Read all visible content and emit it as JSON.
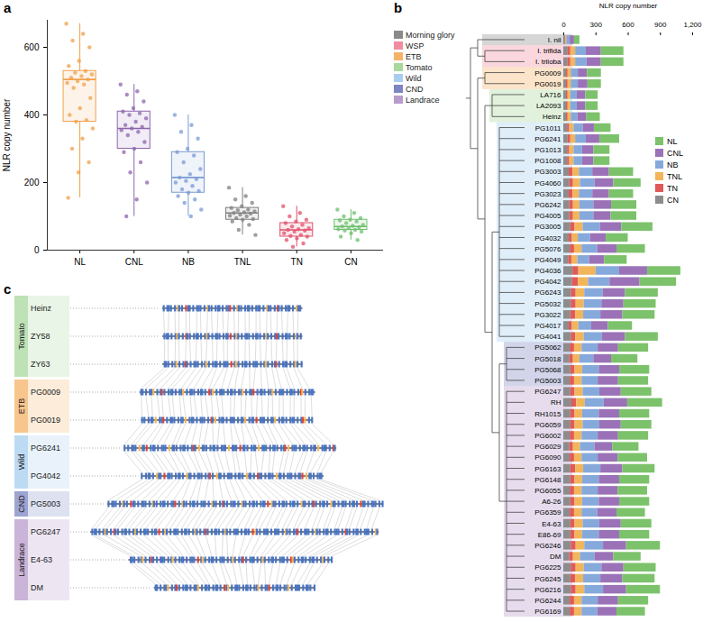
{
  "chart_data": [
    {
      "panel_label": "a",
      "type": "box",
      "categories": [
        "NL",
        "CNL",
        "NB",
        "TNL",
        "TN",
        "CN"
      ],
      "colors": [
        "#f0a04b",
        "#8d66ad",
        "#7a9ad4",
        "#7f7f7f",
        "#e0506b",
        "#6cbf6c"
      ],
      "box": {
        "min": [
          155,
          100,
          100,
          45,
          10,
          30
        ],
        "q1": [
          380,
          300,
          170,
          90,
          40,
          60
        ],
        "median": [
          505,
          360,
          215,
          110,
          60,
          70
        ],
        "q3": [
          530,
          410,
          290,
          125,
          80,
          90
        ],
        "max": [
          670,
          490,
          400,
          185,
          130,
          120
        ]
      },
      "points": [
        [
          670,
          640,
          620,
          600,
          560,
          545,
          530,
          525,
          520,
          515,
          510,
          505,
          500,
          495,
          490,
          480,
          450,
          420,
          400,
          385,
          380,
          360,
          330,
          300,
          260,
          230,
          155
        ],
        [
          490,
          470,
          460,
          440,
          420,
          410,
          405,
          400,
          390,
          380,
          370,
          365,
          360,
          355,
          350,
          340,
          320,
          300,
          290,
          260,
          230,
          200,
          150,
          100
        ],
        [
          400,
          370,
          350,
          330,
          300,
          290,
          280,
          260,
          240,
          225,
          215,
          210,
          205,
          200,
          190,
          180,
          175,
          170,
          160,
          150,
          140,
          120,
          100
        ],
        [
          185,
          160,
          150,
          140,
          130,
          125,
          120,
          118,
          115,
          112,
          110,
          108,
          105,
          102,
          100,
          95,
          92,
          90,
          85,
          75,
          60,
          45
        ],
        [
          130,
          110,
          100,
          90,
          85,
          80,
          75,
          70,
          65,
          62,
          60,
          58,
          55,
          50,
          45,
          42,
          40,
          35,
          30,
          20,
          10
        ],
        [
          120,
          110,
          100,
          95,
          90,
          88,
          85,
          80,
          75,
          72,
          70,
          68,
          65,
          62,
          60,
          58,
          55,
          50,
          40,
          30
        ]
      ],
      "ylabel": "NLR copy number",
      "ylim": [
        0,
        680
      ],
      "yticks": [
        0,
        200,
        400,
        600
      ]
    },
    {
      "panel_label": "b",
      "type": "bar",
      "orientation": "horizontal",
      "stacked": true,
      "legend": "right",
      "categories": [
        "I. nil",
        "I. trifida",
        "I. triloba",
        "PG0009",
        "PG0019",
        "LA716",
        "LA2093",
        "Heinz",
        "PG1011",
        "PG6241",
        "PG1013",
        "PG1008",
        "PG3003",
        "PG4060",
        "PG3023",
        "PG6242",
        "PG4005",
        "PG3005",
        "PG4032",
        "PG5076",
        "PG4049",
        "PG4036",
        "PG4042",
        "PG6243",
        "PG5032",
        "PG3022",
        "PG4017",
        "PG4041",
        "PG5062",
        "PG5018",
        "PG5068",
        "PG5003",
        "PG6247",
        "RH",
        "RH1015",
        "PG6059",
        "PG6002",
        "PG6029",
        "PG6090",
        "PG6163",
        "PG6148",
        "PG6055",
        "A6-26",
        "PG6359",
        "E4-63",
        "E86-69",
        "PG6246",
        "DM",
        "PG6225",
        "PG6245",
        "PG6216",
        "PG6244",
        "PG6169"
      ],
      "series": [
        {
          "name": "CN",
          "color": "#8c8c8c",
          "values": [
            15,
            40,
            40,
            25,
            25,
            25,
            25,
            25,
            35,
            40,
            35,
            35,
            50,
            55,
            50,
            55,
            55,
            65,
            50,
            60,
            45,
            85,
            80,
            70,
            70,
            65,
            50,
            70,
            60,
            55,
            65,
            60,
            65,
            75,
            65,
            65,
            60,
            55,
            60,
            65,
            65,
            60,
            65,
            60,
            65,
            65,
            70,
            55,
            70,
            65,
            70,
            60,
            60
          ]
        },
        {
          "name": "TN",
          "color": "#e05a5a",
          "values": [
            5,
            25,
            25,
            15,
            15,
            15,
            15,
            15,
            20,
            25,
            20,
            20,
            35,
            35,
            35,
            35,
            35,
            40,
            30,
            40,
            30,
            55,
            55,
            45,
            45,
            45,
            30,
            40,
            40,
            35,
            40,
            40,
            40,
            45,
            40,
            40,
            40,
            35,
            40,
            45,
            40,
            40,
            40,
            40,
            40,
            40,
            45,
            35,
            45,
            45,
            45,
            40,
            40
          ]
        },
        {
          "name": "TNL",
          "color": "#f2b55a",
          "values": [
            10,
            45,
            45,
            30,
            30,
            25,
            25,
            30,
            40,
            45,
            40,
            40,
            60,
            65,
            60,
            60,
            60,
            75,
            55,
            70,
            55,
            160,
            95,
            80,
            75,
            75,
            60,
            80,
            70,
            60,
            70,
            70,
            75,
            80,
            70,
            75,
            70,
            65,
            70,
            75,
            70,
            70,
            70,
            70,
            75,
            70,
            80,
            65,
            75,
            75,
            80,
            70,
            70
          ]
        },
        {
          "name": "NB",
          "color": "#86a9dc",
          "values": [
            30,
            100,
            105,
            65,
            65,
            60,
            60,
            60,
            85,
            100,
            80,
            80,
            125,
            135,
            125,
            130,
            130,
            160,
            115,
            145,
            110,
            220,
            200,
            170,
            165,
            160,
            120,
            170,
            150,
            130,
            155,
            150,
            155,
            175,
            155,
            155,
            150,
            135,
            150,
            160,
            155,
            150,
            155,
            145,
            155,
            155,
            175,
            135,
            165,
            160,
            175,
            150,
            145
          ]
        },
        {
          "name": "CNL",
          "color": "#9b72b8",
          "values": [
            40,
            140,
            135,
            85,
            90,
            80,
            80,
            85,
            105,
            125,
            105,
            105,
            155,
            175,
            155,
            165,
            160,
            200,
            145,
            180,
            140,
            260,
            280,
            210,
            205,
            205,
            155,
            215,
            190,
            165,
            190,
            190,
            200,
            220,
            190,
            200,
            190,
            165,
            185,
            205,
            190,
            185,
            190,
            180,
            200,
            190,
            215,
            175,
            205,
            205,
            215,
            190,
            180
          ]
        },
        {
          "name": "NL",
          "color": "#7cc26b",
          "values": [
            50,
            210,
            210,
            130,
            125,
            115,
            115,
            125,
            155,
            185,
            150,
            150,
            225,
            255,
            225,
            235,
            240,
            290,
            205,
            265,
            210,
            310,
            340,
            305,
            300,
            300,
            225,
            305,
            280,
            245,
            280,
            280,
            285,
            325,
            280,
            285,
            280,
            245,
            275,
            300,
            280,
            275,
            280,
            265,
            285,
            280,
            315,
            255,
            300,
            300,
            315,
            280,
            265
          ]
        }
      ],
      "xlabel": "NLR copy number",
      "xlim": [
        0,
        1200
      ],
      "xticks": [
        0,
        300,
        600,
        900,
        {
          "value": 1200,
          "label": "1,200"
        }
      ],
      "groups": [
        {
          "name": "Morning glory",
          "color": "#8a8a8a",
          "members": [
            "I. nil"
          ]
        },
        {
          "name": "WSP",
          "color": "#f28ca0",
          "members": [
            "I. trifida",
            "I. triloba"
          ]
        },
        {
          "name": "ETB",
          "color": "#f5b266",
          "members": [
            "PG0009",
            "PG0019"
          ]
        },
        {
          "name": "Tomato",
          "color": "#a8d89c",
          "members": [
            "LA716",
            "LA2093",
            "Heinz"
          ]
        },
        {
          "name": "Wild",
          "color": "#a7cdef",
          "members": [
            "PG1011",
            "PG6241",
            "PG1013",
            "PG1008",
            "PG3003",
            "PG4060",
            "PG3023",
            "PG6242",
            "PG4005",
            "PG3005",
            "PG4032",
            "PG5076",
            "PG4049",
            "PG4036",
            "PG4042",
            "PG6243",
            "PG5032",
            "PG3022",
            "PG4017",
            "PG4041"
          ]
        },
        {
          "name": "CND",
          "color": "#7d86c2",
          "members": [
            "PG5062",
            "PG5018",
            "PG5068",
            "PG5003"
          ]
        },
        {
          "name": "Landrace",
          "color": "#b89ccc",
          "members": [
            "PG6247",
            "RH",
            "RH1015",
            "PG6059",
            "PG6002",
            "PG6029",
            "PG6090",
            "PG6163",
            "PG6148",
            "PG6055",
            "A6-26",
            "PG6359",
            "E4-63",
            "E86-69",
            "PG6246",
            "DM",
            "PG6225",
            "PG6245",
            "PG6216",
            "PG6244",
            "PG6169"
          ]
        }
      ]
    }
  ],
  "diagram": {
    "panel_label": "c",
    "groups": [
      {
        "name": "Tomato",
        "color": "#a8d89c",
        "accessions": [
          "Heinz",
          "ZY58",
          "ZY63"
        ]
      },
      {
        "name": "ETB",
        "color": "#f5b266",
        "accessions": [
          "PG0009",
          "PG0019"
        ]
      },
      {
        "name": "Wild",
        "color": "#a7cdef",
        "accessions": [
          "PG6241",
          "PG4042"
        ]
      },
      {
        "name": "CND",
        "color": "#7d86c2",
        "accessions": [
          "PG5003"
        ]
      },
      {
        "name": "Landrace",
        "color": "#b89ccc",
        "accessions": [
          "PG6247",
          "E4-63",
          "DM"
        ]
      }
    ]
  }
}
